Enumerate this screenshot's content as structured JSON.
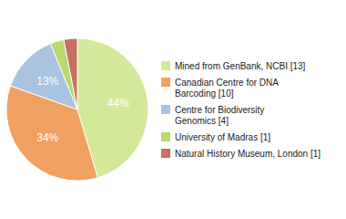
{
  "chart_data": {
    "type": "pie",
    "categories": [
      "Mined from GenBank, NCBI [13]",
      "Canadian Centre for DNA\nBarcoding [10]",
      "Centre for Biodiversity\nGenomics [4]",
      "University of Madras [1]",
      "Natural History Museum, London [1]"
    ],
    "values": [
      44,
      34,
      13,
      3,
      3
    ],
    "value_labels": [
      "44%",
      "34%",
      "13%",
      null,
      null
    ],
    "colors": [
      "#d4e89a",
      "#f0a060",
      "#a8c4e0",
      "#b8d870",
      "#c87060"
    ],
    "data_labels": true,
    "legend": "right"
  }
}
